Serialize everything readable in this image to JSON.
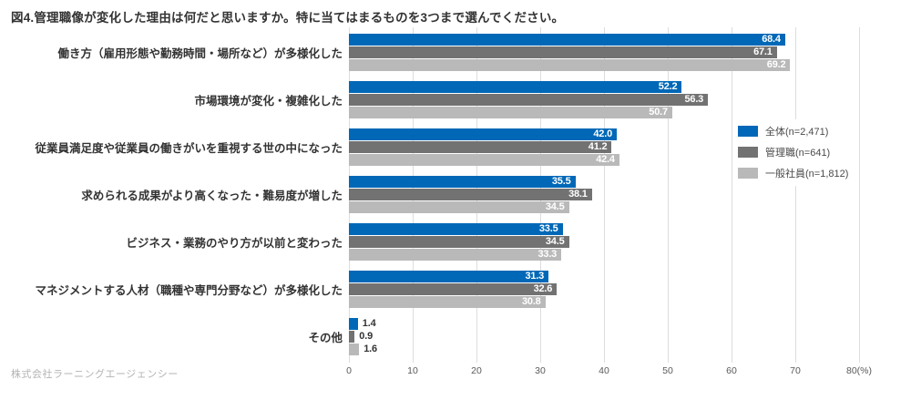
{
  "title": "図4.管理職像が変化した理由は何だと思いますか。特に当てはまるものを3つまで選んでください。",
  "footer": "株式会社ラーニングエージェンシー",
  "colors": {
    "series_all": "#0068B7",
    "series_managers": "#727272",
    "series_staff": "#B9B9B9",
    "gridline": "#DDDDDD",
    "value_label_inside": "#FFFFFF",
    "value_label_outside": "#333333",
    "text": "#333333",
    "tick_text": "#595959",
    "footer_text": "#B3B3B3"
  },
  "chart_data": {
    "type": "bar",
    "orientation": "horizontal",
    "title": "図4.管理職像が変化した理由は何だと思いますか。特に当てはまるものを3つまで選んでください。",
    "xlabel": "(%)",
    "ylabel": "",
    "xlim": [
      0,
      80
    ],
    "x_tick_labels": [
      "0",
      "10",
      "20",
      "30",
      "40",
      "50",
      "60",
      "70",
      "80(%)"
    ],
    "grid": true,
    "legend_position": "right",
    "value_labels": true,
    "categories": [
      "働き方（雇用形態や勤務時間・場所など）が多様化した",
      "市場環境が変化・複雑化した",
      "従業員満足度や従業員の働きがいを重視する世の中になった",
      "求められる成果がより高くなった・難易度が増した",
      "ビジネス・業務のやり方が以前と変わった",
      "マネジメントする人材（職種や専門分野など）が多様化した",
      "その他"
    ],
    "series": [
      {
        "name": "全体(n=2,471)",
        "color": "#0068B7",
        "values": [
          68.4,
          52.2,
          42.0,
          35.5,
          33.5,
          31.3,
          1.4
        ]
      },
      {
        "name": "管理職(n=641)",
        "color": "#727272",
        "values": [
          67.1,
          56.3,
          41.2,
          38.1,
          34.5,
          32.6,
          0.9
        ]
      },
      {
        "name": "一般社員(n=1,812)",
        "color": "#B9B9B9",
        "values": [
          69.2,
          50.7,
          42.4,
          34.5,
          33.3,
          30.8,
          1.6
        ]
      }
    ]
  }
}
